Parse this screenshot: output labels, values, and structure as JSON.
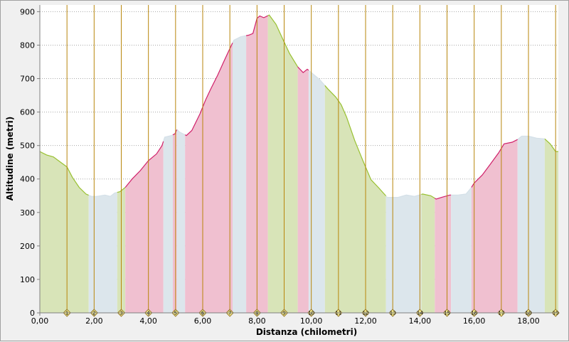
{
  "chart_data": {
    "type": "area",
    "xlabel": "Distanza (chilometri)",
    "ylabel": "Altitudine (metri)",
    "xlim": [
      0,
      19.1
    ],
    "ylim": [
      0,
      920
    ],
    "x_ticks": [
      "0,00",
      "2,00",
      "4,00",
      "6,00",
      "8,00",
      "10,00",
      "12,00",
      "14,00",
      "16,00",
      "18,00"
    ],
    "x_tick_values": [
      0,
      2,
      4,
      6,
      8,
      10,
      12,
      14,
      16,
      18
    ],
    "y_ticks": [
      "0",
      "100",
      "200",
      "300",
      "400",
      "500",
      "600",
      "700",
      "800",
      "900"
    ],
    "y_tick_values": [
      0,
      100,
      200,
      300,
      400,
      500,
      600,
      700,
      800,
      900
    ],
    "grid": true,
    "profile": [
      [
        0.0,
        482
      ],
      [
        0.25,
        472
      ],
      [
        0.5,
        466
      ],
      [
        0.8,
        448
      ],
      [
        1.0,
        436
      ],
      [
        1.2,
        405
      ],
      [
        1.45,
        375
      ],
      [
        1.7,
        355
      ],
      [
        1.9,
        348
      ],
      [
        2.1,
        348
      ],
      [
        2.4,
        352
      ],
      [
        2.6,
        348
      ],
      [
        2.75,
        358
      ],
      [
        2.95,
        362
      ],
      [
        3.15,
        375
      ],
      [
        3.4,
        400
      ],
      [
        3.7,
        425
      ],
      [
        4.0,
        455
      ],
      [
        4.3,
        475
      ],
      [
        4.5,
        500
      ],
      [
        4.6,
        525
      ],
      [
        4.85,
        530
      ],
      [
        4.98,
        535
      ],
      [
        5.0,
        540
      ],
      [
        5.05,
        548
      ],
      [
        5.15,
        540
      ],
      [
        5.4,
        530
      ],
      [
        5.6,
        545
      ],
      [
        5.9,
        595
      ],
      [
        6.1,
        635
      ],
      [
        6.3,
        670
      ],
      [
        6.55,
        710
      ],
      [
        6.8,
        755
      ],
      [
        7.0,
        790
      ],
      [
        7.15,
        815
      ],
      [
        7.4,
        825
      ],
      [
        7.7,
        830
      ],
      [
        7.85,
        835
      ],
      [
        8.0,
        880
      ],
      [
        8.1,
        887
      ],
      [
        8.25,
        882
      ],
      [
        8.45,
        890
      ],
      [
        8.7,
        862
      ],
      [
        8.95,
        818
      ],
      [
        9.2,
        775
      ],
      [
        9.5,
        735
      ],
      [
        9.7,
        718
      ],
      [
        9.85,
        728
      ],
      [
        10.0,
        718
      ],
      [
        10.3,
        698
      ],
      [
        10.6,
        670
      ],
      [
        10.9,
        645
      ],
      [
        11.1,
        622
      ],
      [
        11.3,
        585
      ],
      [
        11.6,
        515
      ],
      [
        11.9,
        455
      ],
      [
        12.2,
        398
      ],
      [
        12.5,
        372
      ],
      [
        12.8,
        345
      ],
      [
        13.2,
        345
      ],
      [
        13.5,
        352
      ],
      [
        13.8,
        348
      ],
      [
        14.1,
        355
      ],
      [
        14.4,
        350
      ],
      [
        14.6,
        340
      ],
      [
        14.8,
        345
      ],
      [
        15.1,
        352
      ],
      [
        15.4,
        352
      ],
      [
        15.7,
        355
      ],
      [
        15.9,
        375
      ],
      [
        16.0,
        388
      ],
      [
        16.3,
        412
      ],
      [
        16.6,
        445
      ],
      [
        16.9,
        478
      ],
      [
        17.1,
        505
      ],
      [
        17.4,
        510
      ],
      [
        17.6,
        518
      ],
      [
        17.75,
        528
      ],
      [
        18.0,
        528
      ],
      [
        18.3,
        522
      ],
      [
        18.6,
        520
      ],
      [
        18.8,
        505
      ],
      [
        19.0,
        482
      ]
    ],
    "segments": [
      {
        "from": 0.0,
        "to": 1.8,
        "kind": "descent"
      },
      {
        "from": 1.8,
        "to": 2.85,
        "kind": "flat"
      },
      {
        "from": 2.85,
        "to": 3.15,
        "kind": "descent"
      },
      {
        "from": 3.15,
        "to": 4.55,
        "kind": "ascent"
      },
      {
        "from": 4.55,
        "to": 4.9,
        "kind": "flat"
      },
      {
        "from": 4.9,
        "to": 5.05,
        "kind": "ascent"
      },
      {
        "from": 5.05,
        "to": 5.35,
        "kind": "flat"
      },
      {
        "from": 5.35,
        "to": 7.1,
        "kind": "ascent"
      },
      {
        "from": 7.1,
        "to": 7.6,
        "kind": "flat"
      },
      {
        "from": 7.6,
        "to": 8.4,
        "kind": "ascent"
      },
      {
        "from": 8.4,
        "to": 9.5,
        "kind": "descent"
      },
      {
        "from": 9.5,
        "to": 9.9,
        "kind": "ascent"
      },
      {
        "from": 9.9,
        "to": 10.5,
        "kind": "flat"
      },
      {
        "from": 10.5,
        "to": 12.75,
        "kind": "descent"
      },
      {
        "from": 12.75,
        "to": 14.05,
        "kind": "flat"
      },
      {
        "from": 14.05,
        "to": 14.55,
        "kind": "descent"
      },
      {
        "from": 14.55,
        "to": 15.15,
        "kind": "ascent"
      },
      {
        "from": 15.15,
        "to": 15.9,
        "kind": "flat"
      },
      {
        "from": 15.9,
        "to": 17.6,
        "kind": "ascent"
      },
      {
        "from": 17.6,
        "to": 18.6,
        "kind": "flat"
      },
      {
        "from": 18.6,
        "to": 19.1,
        "kind": "descent"
      }
    ],
    "segment_colors": {
      "ascent": "#f0c0d0",
      "descent": "#d8e4b8",
      "flat": "#dce6ec"
    },
    "segment_line_colors": {
      "ascent": "#d0206a",
      "descent": "#98c030",
      "flat": "#d4e0e8"
    },
    "km_markers": [
      {
        "label": "1",
        "x": 1.0
      },
      {
        "label": "2",
        "x": 2.0
      },
      {
        "label": "3",
        "x": 3.0
      },
      {
        "label": "4",
        "x": 4.0
      },
      {
        "label": "5",
        "x": 5.0
      },
      {
        "label": "6",
        "x": 6.0
      },
      {
        "label": "7",
        "x": 7.0
      },
      {
        "label": "8",
        "x": 8.0
      },
      {
        "label": "9",
        "x": 9.0
      },
      {
        "label": "10",
        "x": 10.0
      },
      {
        "label": "11",
        "x": 11.0
      },
      {
        "label": "12",
        "x": 12.0
      },
      {
        "label": "13",
        "x": 13.0
      },
      {
        "label": "14",
        "x": 14.0
      },
      {
        "label": "15",
        "x": 15.0
      },
      {
        "label": "16",
        "x": 16.0
      },
      {
        "label": "17",
        "x": 17.0
      },
      {
        "label": "18",
        "x": 18.0
      },
      {
        "label": "19",
        "x": 19.0
      }
    ],
    "marker_line_color": "#b8860b",
    "marker_fill_color": "#f0e68c",
    "axis_title_color": "#8b4513"
  }
}
